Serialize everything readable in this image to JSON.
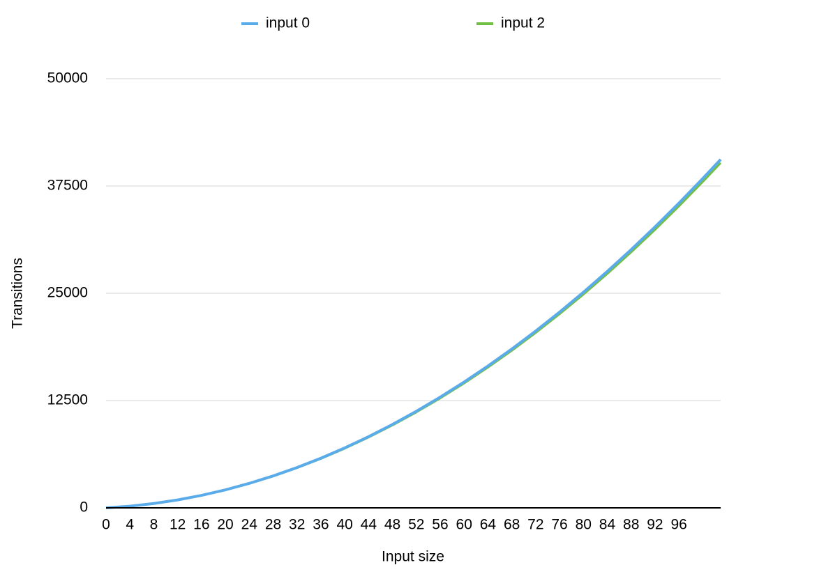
{
  "chart_data": {
    "type": "line",
    "legend": [
      "input 0",
      "input 2"
    ],
    "x_label": "Input size",
    "y_label": "Transitions",
    "x": [
      0,
      4,
      8,
      12,
      16,
      20,
      24,
      28,
      32,
      36,
      40,
      44,
      48,
      52,
      56,
      60,
      64,
      68,
      72,
      76,
      80,
      84,
      88,
      92,
      96,
      100,
      103
    ],
    "series": [
      {
        "name": "input 2",
        "color": "#72c043",
        "values": [
          0,
          195,
          500,
          915,
          1440,
          2077,
          2823,
          3681,
          4648,
          5726,
          6914,
          8213,
          9622,
          11140,
          12771,
          14511,
          16363,
          18324,
          20394,
          22576,
          24869,
          27272,
          29785,
          32408,
          35141,
          37986,
          40192
        ]
      },
      {
        "name": "input 0",
        "color": "#5aabea",
        "values": [
          0,
          197,
          505,
          924,
          1455,
          2098,
          2852,
          3718,
          4695,
          5784,
          6984,
          8296,
          9719,
          11253,
          12900,
          14658,
          16528,
          18509,
          20600,
          22804,
          25120,
          27547,
          30086,
          32735,
          35496,
          38370,
          40598
        ]
      }
    ],
    "xlim": [
      0,
      103
    ],
    "xticks": [
      0,
      4,
      8,
      12,
      16,
      20,
      24,
      28,
      32,
      36,
      40,
      44,
      48,
      52,
      56,
      60,
      64,
      68,
      72,
      76,
      80,
      84,
      88,
      92,
      96
    ],
    "ylim": [
      0,
      50000
    ],
    "yticks": [
      0,
      12500,
      25000,
      37500,
      50000
    ],
    "grid": true
  }
}
